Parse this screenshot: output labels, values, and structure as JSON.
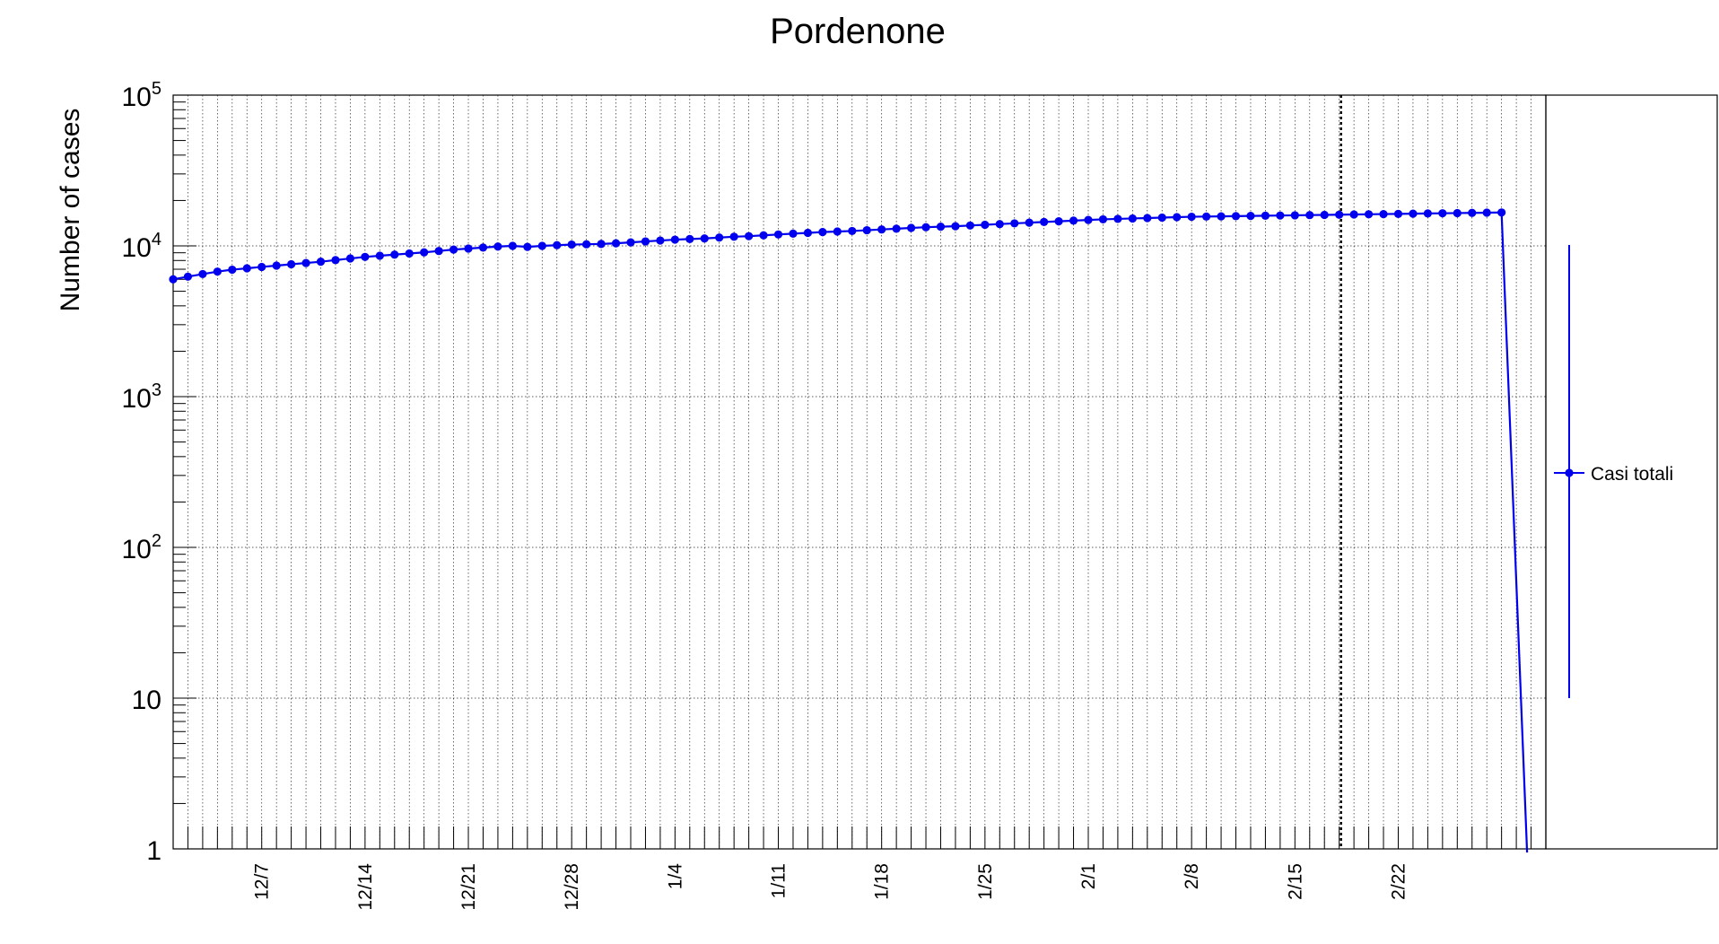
{
  "chart_data": {
    "type": "line",
    "title": "Pordenone",
    "xlabel": "",
    "ylabel": "Number of cases",
    "yscale": "log",
    "ylim": [
      1,
      100000
    ],
    "xlim": [
      "2020-12-01",
      "2021-03-04"
    ],
    "y_ticks": [
      {
        "value": 1,
        "base": "1",
        "exp": ""
      },
      {
        "value": 10,
        "base": "10",
        "exp": ""
      },
      {
        "value": 100,
        "base": "10",
        "exp": "2"
      },
      {
        "value": 1000,
        "base": "10",
        "exp": "3"
      },
      {
        "value": 10000,
        "base": "10",
        "exp": "4"
      },
      {
        "value": 100000,
        "base": "10",
        "exp": "5"
      }
    ],
    "x_ticks": [
      {
        "date": "2020-12-07",
        "label": "12/7"
      },
      {
        "date": "2020-12-14",
        "label": "12/14"
      },
      {
        "date": "2020-12-21",
        "label": "12/21"
      },
      {
        "date": "2020-12-28",
        "label": "12/28"
      },
      {
        "date": "2021-01-04",
        "label": "1/4"
      },
      {
        "date": "2021-01-11",
        "label": "1/11"
      },
      {
        "date": "2021-01-18",
        "label": "1/18"
      },
      {
        "date": "2021-01-25",
        "label": "1/25"
      },
      {
        "date": "2021-02-01",
        "label": "2/1"
      },
      {
        "date": "2021-02-08",
        "label": "2/8"
      },
      {
        "date": "2021-02-15",
        "label": "2/15"
      },
      {
        "date": "2021-02-22",
        "label": "2/22"
      }
    ],
    "grid": true,
    "legend_position": "right",
    "marker_line": {
      "date": "2021-02-18",
      "style": "dotted"
    },
    "series": [
      {
        "name": "Casi totali",
        "color": "#0000ee",
        "start_date": "2020-12-01",
        "values": [
          6000,
          6250,
          6500,
          6750,
          6950,
          7100,
          7250,
          7400,
          7550,
          7700,
          7850,
          8050,
          8250,
          8450,
          8600,
          8750,
          8900,
          9050,
          9250,
          9450,
          9600,
          9750,
          9900,
          10000,
          9850,
          10000,
          10100,
          10200,
          10250,
          10300,
          10400,
          10550,
          10700,
          10850,
          11000,
          11100,
          11200,
          11350,
          11500,
          11600,
          11750,
          11900,
          12050,
          12200,
          12350,
          12450,
          12550,
          12700,
          12850,
          13000,
          13150,
          13300,
          13400,
          13500,
          13650,
          13800,
          13950,
          14100,
          14250,
          14400,
          14550,
          14700,
          14850,
          15000,
          15100,
          15200,
          15300,
          15400,
          15500,
          15600,
          15650,
          15700,
          15750,
          15800,
          15850,
          15900,
          15950,
          16000,
          16050,
          16100,
          16150,
          16200,
          16250,
          16300,
          16350,
          16400,
          16450,
          16500,
          16550,
          16600,
          16650,
          0
        ]
      }
    ]
  }
}
